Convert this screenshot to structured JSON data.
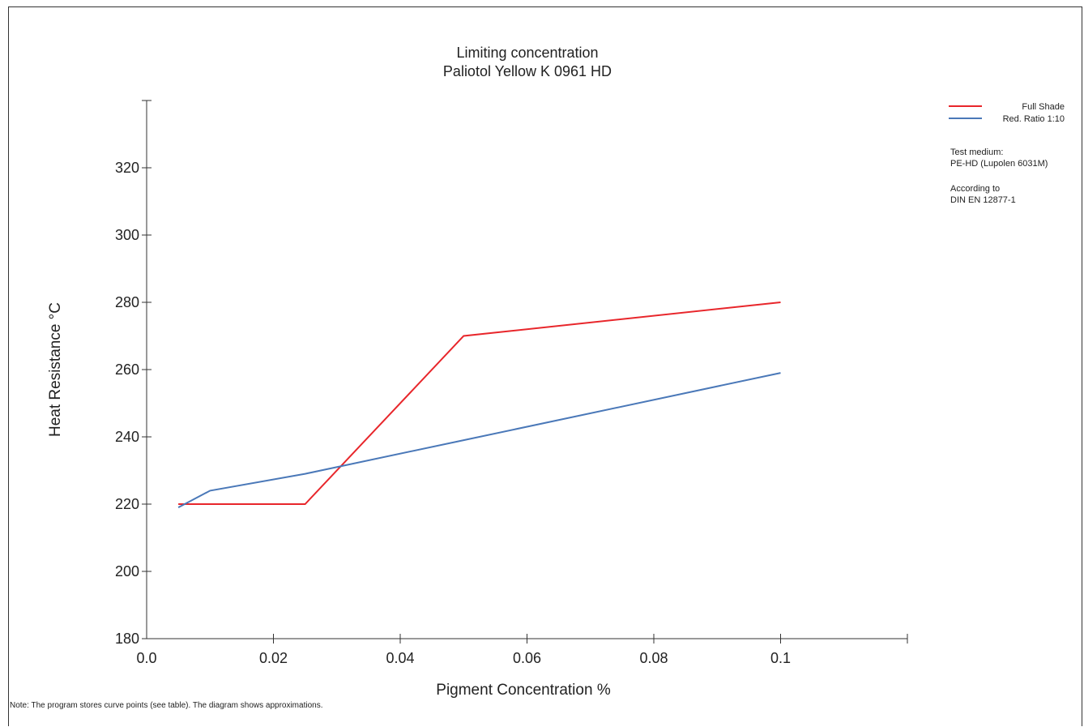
{
  "chart_data": {
    "type": "line",
    "title": "Limiting concentration",
    "subtitle": "Paliotol Yellow K 0961 HD",
    "xlabel": "Pigment Concentration %",
    "ylabel": "Heat Resistance °C",
    "xlim": [
      0.0,
      0.12
    ],
    "ylim": [
      180,
      340
    ],
    "x_ticks": [
      0.0,
      0.02,
      0.04,
      0.06,
      0.08,
      0.1
    ],
    "x_tick_labels": [
      "0.0",
      "0.02",
      "0.04",
      "0.06",
      "0.08",
      "0.1"
    ],
    "y_ticks": [
      180,
      200,
      220,
      240,
      260,
      280,
      300,
      320
    ],
    "y_tick_labels": [
      "180",
      "200",
      "220",
      "240",
      "260",
      "280",
      "300",
      "320"
    ],
    "grid": false,
    "legend_position": "top-right",
    "series": [
      {
        "name": "Full Shade",
        "color": "#e8262b",
        "x": [
          0.005,
          0.025,
          0.05,
          0.1
        ],
        "y": [
          220,
          220,
          270,
          280
        ]
      },
      {
        "name": "Red. Ratio 1:10",
        "color": "#4a78b8",
        "x": [
          0.005,
          0.01,
          0.025,
          0.05,
          0.1
        ],
        "y": [
          219,
          224,
          229,
          239,
          259
        ]
      }
    ],
    "info": {
      "medium_label": "Test medium:",
      "medium_value": "PE-HD (Lupolen 6031M)",
      "standard_label": "According to",
      "standard_value": "DIN EN 12877-1"
    },
    "note": "Note: The program stores curve points (see table). The diagram shows approximations."
  }
}
